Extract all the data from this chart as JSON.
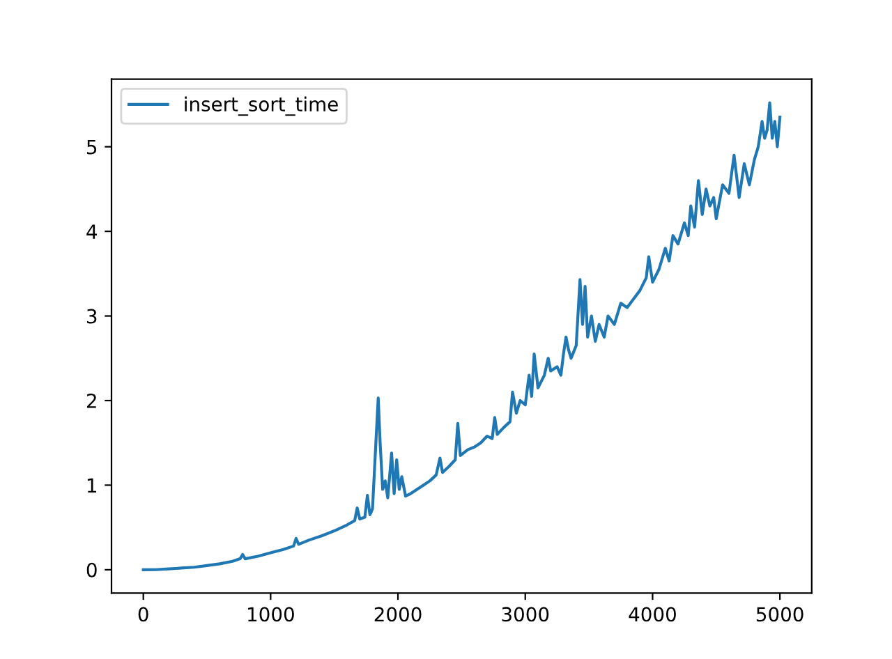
{
  "chart_data": {
    "type": "line",
    "x": [
      0,
      100,
      200,
      300,
      400,
      500,
      600,
      700,
      760,
      780,
      800,
      900,
      1000,
      1100,
      1180,
      1200,
      1220,
      1300,
      1400,
      1500,
      1600,
      1660,
      1680,
      1700,
      1740,
      1760,
      1780,
      1800,
      1830,
      1845,
      1860,
      1880,
      1900,
      1920,
      1950,
      1970,
      1990,
      2010,
      2030,
      2060,
      2100,
      2150,
      2200,
      2250,
      2300,
      2330,
      2350,
      2400,
      2450,
      2470,
      2490,
      2550,
      2600,
      2650,
      2700,
      2740,
      2760,
      2780,
      2830,
      2880,
      2900,
      2930,
      2960,
      3000,
      3030,
      3050,
      3070,
      3100,
      3150,
      3180,
      3200,
      3250,
      3280,
      3300,
      3320,
      3340,
      3360,
      3400,
      3430,
      3450,
      3470,
      3490,
      3520,
      3550,
      3580,
      3620,
      3650,
      3700,
      3750,
      3800,
      3850,
      3900,
      3950,
      3970,
      4000,
      4050,
      4100,
      4130,
      4160,
      4200,
      4250,
      4280,
      4300,
      4330,
      4360,
      4390,
      4420,
      4450,
      4480,
      4500,
      4550,
      4600,
      4640,
      4680,
      4720,
      4760,
      4800,
      4830,
      4860,
      4880,
      4900,
      4920,
      4940,
      4960,
      4980,
      5000
    ],
    "series": [
      {
        "name": "insert_sort_time",
        "color": "#1f77b4",
        "values": [
          0,
          0.001,
          0.01,
          0.02,
          0.03,
          0.05,
          0.07,
          0.1,
          0.13,
          0.18,
          0.13,
          0.16,
          0.2,
          0.24,
          0.28,
          0.37,
          0.3,
          0.35,
          0.4,
          0.46,
          0.53,
          0.58,
          0.73,
          0.6,
          0.62,
          0.88,
          0.65,
          0.72,
          1.6,
          2.03,
          1.5,
          0.95,
          1.05,
          0.85,
          1.38,
          0.9,
          1.3,
          0.95,
          1.1,
          0.87,
          0.9,
          0.95,
          1.0,
          1.05,
          1.12,
          1.32,
          1.15,
          1.22,
          1.3,
          1.73,
          1.35,
          1.42,
          1.45,
          1.5,
          1.58,
          1.55,
          1.8,
          1.6,
          1.68,
          1.75,
          2.1,
          1.85,
          2.0,
          1.95,
          2.3,
          2.05,
          2.55,
          2.15,
          2.3,
          2.5,
          2.35,
          2.4,
          2.3,
          2.55,
          2.75,
          2.6,
          2.5,
          2.65,
          3.43,
          2.9,
          3.35,
          2.75,
          3.0,
          2.7,
          2.9,
          2.75,
          3.0,
          2.9,
          3.15,
          3.1,
          3.2,
          3.3,
          3.45,
          3.7,
          3.4,
          3.55,
          3.8,
          3.65,
          3.95,
          3.85,
          4.1,
          3.95,
          4.3,
          4.05,
          4.6,
          4.2,
          4.5,
          4.3,
          4.4,
          4.15,
          4.55,
          4.45,
          4.9,
          4.4,
          4.8,
          4.55,
          4.85,
          5.0,
          5.3,
          5.1,
          5.2,
          5.52,
          5.1,
          5.3,
          5.0,
          5.35
        ]
      }
    ],
    "xlim": [
      -250,
      5250
    ],
    "ylim": [
      -0.276,
      5.8
    ],
    "xticks": [
      0,
      1000,
      2000,
      3000,
      4000,
      5000
    ],
    "yticks": [
      0,
      1,
      2,
      3,
      4,
      5
    ],
    "legend": "top left",
    "grid": false
  }
}
